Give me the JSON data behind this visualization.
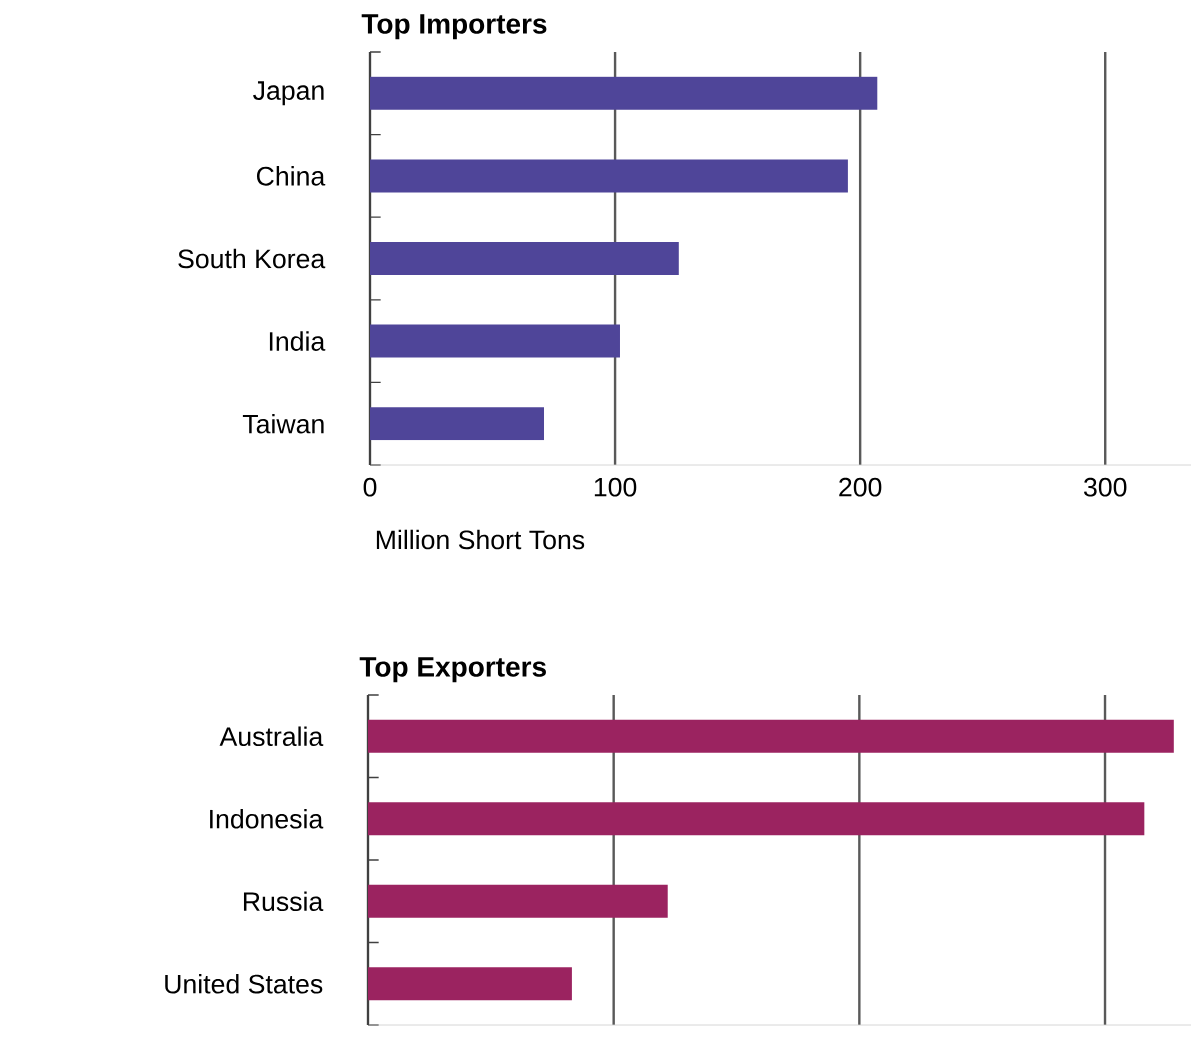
{
  "chart_data": [
    {
      "type": "bar",
      "orientation": "horizontal",
      "title": "Top Importers",
      "xlabel": "Million Short Tons",
      "categories": [
        "Japan",
        "China",
        "South Korea",
        "India",
        "Taiwan"
      ],
      "values": [
        207,
        195,
        126,
        102,
        71
      ],
      "color": "#4f4599",
      "xlim": [
        0,
        335
      ],
      "xticks": [
        0,
        100,
        200,
        300
      ],
      "grid": "x"
    },
    {
      "type": "bar",
      "orientation": "horizontal",
      "title": "Top Exporters",
      "categories": [
        "Australia",
        "Indonesia",
        "Russia",
        "United States"
      ],
      "values": [
        328,
        316,
        122,
        83
      ],
      "color": "#9b2360",
      "xlim": [
        0,
        335
      ],
      "xticks": [
        0,
        100,
        200,
        300
      ],
      "grid": "x",
      "tick_labels": "y"
    }
  ]
}
